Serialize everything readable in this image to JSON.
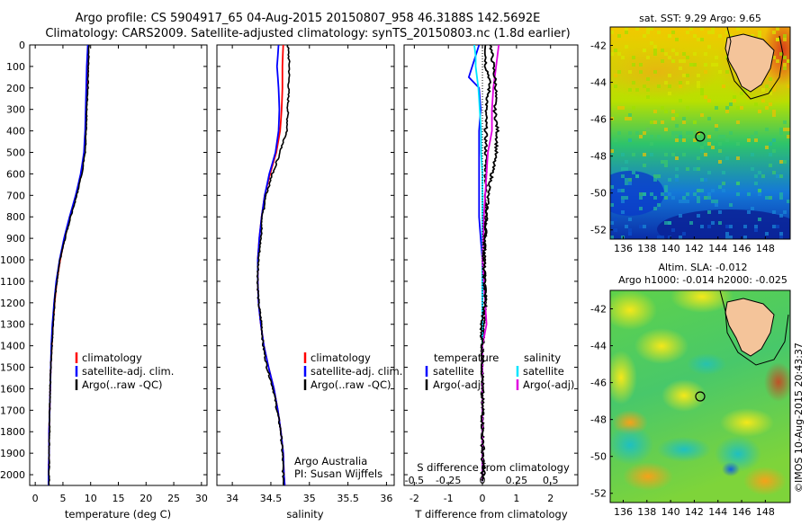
{
  "header": {
    "line1": "Argo profile: CS 5904917_65 04-Aug-2015 20150807_958 46.3188S 142.5692E",
    "line2": "Climatology: CARS2009. Satellite-adjusted climatology: synTS_20150803.nc (1.8d earlier)"
  },
  "y_ticks": [
    0,
    100,
    200,
    300,
    400,
    500,
    600,
    700,
    800,
    900,
    1000,
    1100,
    1200,
    1300,
    1400,
    1500,
    1600,
    1700,
    1800,
    1900,
    2000
  ],
  "colors": {
    "climatology": "#ff0000",
    "satellite": "#0000ff",
    "argo": "#000000",
    "sat_sal": "#00e5ff",
    "argo_sal": "#e000e0"
  },
  "panel_temp": {
    "xlabel": "temperature (deg C)",
    "x_ticks": [
      "0",
      "5",
      "10",
      "15",
      "20",
      "25",
      "30"
    ],
    "legend": [
      "climatology",
      "satellite-adj. clim.",
      "Argo(..raw -QC)"
    ]
  },
  "panel_sal": {
    "xlabel": "salinity",
    "x_ticks": [
      "34",
      "34.5",
      "35",
      "35.5",
      "36"
    ],
    "legend": [
      "climatology",
      "satellite-adj. clim.",
      "Argo(..raw -QC)"
    ],
    "note1": "Argo Australia",
    "note2": "PI: Susan Wijffels"
  },
  "panel_diff": {
    "top_label": "S difference from climatology",
    "top_ticks": [
      "-0.5",
      "-0.25",
      "0",
      "0.25",
      "0.5"
    ],
    "xlabel": "T difference from climatology",
    "x_ticks": [
      "-2",
      "-1",
      "0",
      "1",
      "2"
    ],
    "legend_t_title": "temperature",
    "legend_s_title": "salinity",
    "legend_t": [
      "satellite",
      "Argo(-adj)"
    ],
    "legend_s": [
      "satellite",
      "Argo(-adj)"
    ]
  },
  "map_sst": {
    "title": "sat. SST: 9.29  Argo: 9.65",
    "y_ticks": [
      "-42",
      "-44",
      "-46",
      "-48",
      "-50",
      "-52"
    ],
    "x_ticks": [
      "136",
      "138",
      "140",
      "142",
      "144",
      "146",
      "148"
    ]
  },
  "map_sla": {
    "title1": "Altim. SLA: -0.012",
    "title2": "Argo h1000: -0.014 h2000: -0.025",
    "y_ticks": [
      "-42",
      "-44",
      "-46",
      "-48",
      "-50",
      "-52"
    ],
    "x_ticks": [
      "136",
      "138",
      "140",
      "142",
      "144",
      "146",
      "148"
    ]
  },
  "stamp": "©IMOS 10-Aug-2015 20:43:37",
  "chart_data": [
    {
      "type": "line",
      "xlabel": "temperature (deg C)",
      "ylabel": "",
      "xlim": [
        -1,
        31
      ],
      "ylim": [
        2050,
        0
      ],
      "depth": [
        0,
        100,
        200,
        300,
        400,
        500,
        600,
        700,
        800,
        900,
        1000,
        1100,
        1200,
        1300,
        1400,
        1500,
        1600,
        1700,
        1800,
        1900,
        2000,
        2050
      ],
      "series": [
        {
          "name": "climatology",
          "values": [
            9.6,
            9.5,
            9.3,
            9.2,
            9.1,
            8.9,
            8.3,
            7.4,
            6.3,
            5.3,
            4.5,
            3.9,
            3.5,
            3.2,
            3.0,
            2.8,
            2.7,
            2.6,
            2.5,
            2.5,
            2.4,
            2.4
          ]
        },
        {
          "name": "satellite-adj. clim.",
          "values": [
            9.5,
            9.3,
            9.2,
            9.1,
            9.0,
            8.8,
            8.2,
            7.3,
            6.2,
            5.2,
            4.4,
            3.8,
            3.4,
            3.1,
            2.9,
            2.8,
            2.7,
            2.6,
            2.5,
            2.5,
            2.4,
            2.4
          ]
        },
        {
          "name": "Argo(..raw -QC)",
          "values": [
            9.7,
            9.6,
            9.5,
            9.3,
            9.2,
            9.0,
            8.4,
            7.5,
            6.4,
            5.4,
            4.5,
            3.9,
            3.5,
            3.2,
            3.0,
            2.8,
            2.7,
            2.6,
            2.6,
            2.5,
            2.5,
            2.5
          ]
        }
      ]
    },
    {
      "type": "line",
      "xlabel": "salinity",
      "xlim": [
        33.8,
        36.1
      ],
      "ylim": [
        2050,
        0
      ],
      "depth": [
        0,
        100,
        200,
        300,
        400,
        500,
        600,
        700,
        800,
        900,
        1000,
        1100,
        1200,
        1300,
        1400,
        1500,
        1600,
        1700,
        1800,
        1900,
        2000,
        2050
      ],
      "series": [
        {
          "name": "climatology",
          "values": [
            34.66,
            34.65,
            34.65,
            34.64,
            34.62,
            34.57,
            34.49,
            34.42,
            34.38,
            34.35,
            34.33,
            34.33,
            34.34,
            34.37,
            34.41,
            34.47,
            34.54,
            34.59,
            34.63,
            34.66,
            34.67,
            34.68
          ]
        },
        {
          "name": "satellite-adj. clim.",
          "values": [
            34.6,
            34.58,
            34.6,
            34.61,
            34.6,
            34.56,
            34.48,
            34.42,
            34.38,
            34.35,
            34.33,
            34.33,
            34.34,
            34.37,
            34.41,
            34.47,
            34.54,
            34.59,
            34.63,
            34.66,
            34.67,
            34.68
          ]
        },
        {
          "name": "Argo(..raw -QC)",
          "values": [
            34.72,
            34.74,
            34.73,
            34.72,
            34.71,
            34.62,
            34.52,
            34.44,
            34.39,
            34.37,
            34.34,
            34.33,
            34.34,
            34.38,
            34.4,
            34.45,
            34.53,
            34.58,
            34.63,
            34.65,
            34.66,
            34.67
          ]
        }
      ]
    },
    {
      "type": "line",
      "xlabel": "T difference from climatology",
      "xlim": [
        -2.3,
        2.8
      ],
      "top_xlim": [
        -0.575,
        0.7
      ],
      "ylim": [
        2050,
        0
      ],
      "depth": [
        0,
        50,
        100,
        150,
        200,
        300,
        400,
        500,
        600,
        700,
        800,
        1000,
        1200,
        1300,
        1400,
        1600,
        1800,
        2000,
        2030
      ],
      "series": [
        {
          "name": "temperature satellite",
          "values": [
            -0.1,
            -0.2,
            -0.3,
            -0.4,
            -0.1,
            -0.05,
            -0.1,
            -0.1,
            -0.1,
            -0.1,
            -0.1,
            0,
            0,
            0,
            0,
            0,
            0,
            0,
            0
          ]
        },
        {
          "name": "temperature Argo(-adj)",
          "values": [
            0.1,
            0.1,
            0.1,
            0.2,
            0.2,
            0.1,
            0.1,
            0.1,
            0.1,
            0.1,
            0.1,
            0.05,
            0.1,
            0.05,
            0,
            0,
            0,
            0.05,
            0
          ]
        },
        {
          "name": "salinity satellite",
          "values": [
            -0.06,
            -0.05,
            -0.05,
            -0.04,
            -0.03,
            -0.02,
            -0.01,
            -0.01,
            0,
            0,
            0,
            0,
            0,
            0,
            0,
            0,
            0,
            0,
            0
          ]
        },
        {
          "name": "salinity Argo(-adj)",
          "values": [
            0.12,
            0.11,
            0.1,
            0.09,
            0.08,
            0.07,
            0.07,
            0.04,
            0.03,
            0.02,
            0.01,
            0.0,
            0.02,
            0.03,
            0.0,
            0.0,
            0.0,
            0.0,
            0.0
          ]
        },
        {
          "name": "salinity Argo raw",
          "values": [
            0.06,
            0.07,
            0.08,
            0.09,
            0.1,
            0.09,
            0.11,
            0.1,
            0.07,
            0.04,
            0.03,
            0.01,
            0.02,
            -0.01,
            0.0,
            0.0,
            0.0,
            0.0,
            0.0
          ]
        }
      ]
    }
  ]
}
